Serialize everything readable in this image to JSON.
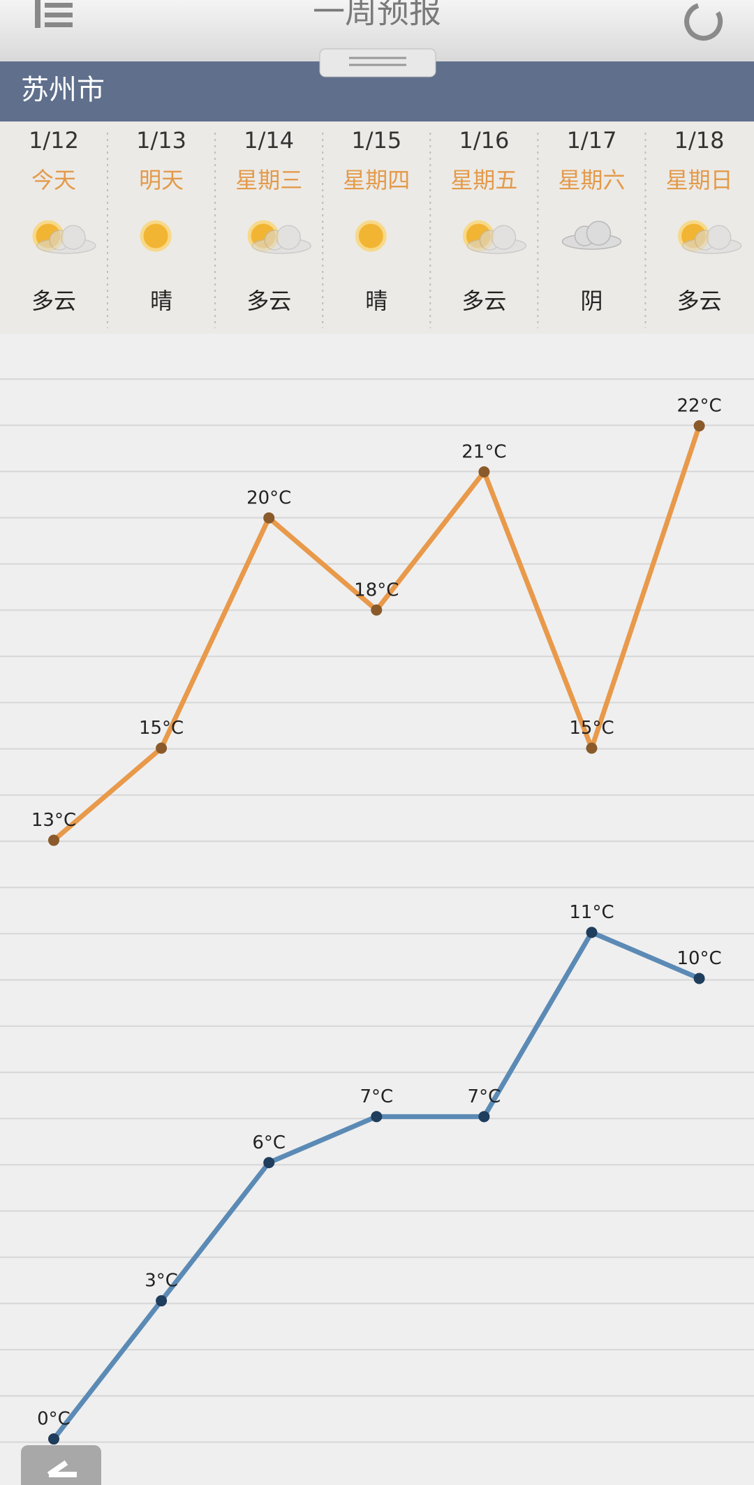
{
  "header": {
    "title": "一周预报",
    "city": "苏州市"
  },
  "days": [
    {
      "label": "今天",
      "weather": "多云"
    },
    {
      "label": "明天",
      "weather": "晴"
    },
    {
      "label": "星期三",
      "weather": "多云"
    },
    {
      "label": "星期四",
      "weather": "晴"
    },
    {
      "label": "星期五",
      "weather": "多云"
    },
    {
      "label": "星期六",
      "weather": "阴"
    },
    {
      "label": "星期日",
      "weather": "多云"
    }
  ],
  "chart_data": {
    "type": "line",
    "categories": [
      "1/12",
      "1/13",
      "1/14",
      "1/15",
      "1/16",
      "1/17",
      "1/18"
    ],
    "ylim": [
      -1,
      24
    ],
    "series": [
      {
        "color": "#e8994a",
        "point_color": "#8a5a2a",
        "values": [
          13,
          15,
          20,
          18,
          21,
          15,
          22
        ],
        "value_labels": [
          "13°C",
          "15°C",
          "20°C",
          "18°C",
          "21°C",
          "15°C",
          "22°C"
        ]
      },
      {
        "color": "#5b8ab5",
        "point_color": "#1f3d5c",
        "values": [
          0,
          3,
          6,
          7,
          7,
          11,
          10
        ],
        "value_labels": [
          "0°C",
          "3°C",
          "6°C",
          "7°C",
          "7°C",
          "11°C",
          "10°C"
        ]
      }
    ]
  }
}
